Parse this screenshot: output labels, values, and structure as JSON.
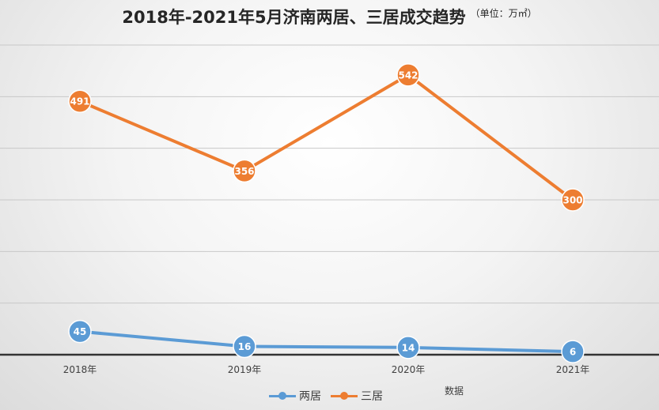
{
  "title": "2018年-2021年5月济南两居、三居成交趋势",
  "subtitle": "（单位：万㎡）",
  "side_label": "数据",
  "colors": {
    "two_room": "#5b9bd5",
    "three_room": "#ed7d31",
    "axis": "#333333",
    "grid": "#c8c8c8"
  },
  "chart_data": {
    "type": "line",
    "title": "2018年-2021年5月济南两居、三居成交趋势",
    "subtitle": "（单位：万㎡）",
    "categories": [
      "2018年",
      "2019年",
      "2020年",
      "2021年"
    ],
    "series": [
      {
        "name": "两居",
        "values": [
          45,
          16,
          14,
          6
        ],
        "color": "#5b9bd5"
      },
      {
        "name": "三居",
        "values": [
          491,
          356,
          542,
          300
        ],
        "color": "#ed7d31"
      }
    ],
    "ylim": [
      0,
      600
    ],
    "y_tick_step": 100,
    "y_tick_labels_shown": false,
    "grid": true,
    "legend_position": "bottom",
    "data_labels": true
  }
}
